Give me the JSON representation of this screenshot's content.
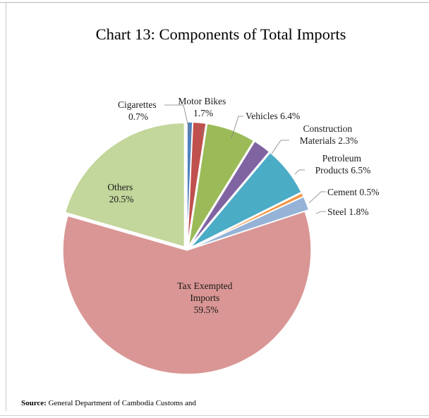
{
  "chart_data": {
    "type": "pie",
    "title": "Chart 13: Components of Total Imports",
    "slices": [
      {
        "name": "Cigarettes",
        "value": 0.7,
        "value_label": "0.7%",
        "color": "#4f81bd",
        "explode": true
      },
      {
        "name": "Motor Bikes",
        "value": 1.7,
        "value_label": "1.7%",
        "color": "#c0504d",
        "explode": true
      },
      {
        "name": "Vehicles",
        "value": 6.4,
        "value_label": "6.4%",
        "color": "#9bbb59",
        "explode": true
      },
      {
        "name": "Construction Materials",
        "value": 2.3,
        "value_label": "2.3%",
        "color": "#8064a2",
        "explode": true
      },
      {
        "name": "Petroleum Products",
        "value": 6.5,
        "value_label": "6.5%",
        "color": "#4bacc6",
        "explode": true
      },
      {
        "name": "Cement",
        "value": 0.5,
        "value_label": "0.5%",
        "color": "#f79646",
        "explode": true
      },
      {
        "name": "Steel",
        "value": 1.8,
        "value_label": "1.8%",
        "color": "#95b3d7",
        "explode": true
      },
      {
        "name": "Tax Exempted Imports",
        "value": 59.5,
        "value_label": "59.5%",
        "color": "#d99694",
        "explode": false
      },
      {
        "name": "Others",
        "value": 20.5,
        "value_label": "20.5%",
        "color": "#c3d69b",
        "explode": true
      }
    ]
  },
  "labels": {
    "cigarettes": {
      "line1": "Cigarettes",
      "line2": "0.7%"
    },
    "motor_bikes": {
      "line1": "Motor Bikes",
      "line2": "1.7%"
    },
    "vehicles": {
      "line1": "Vehicles 6.4%"
    },
    "construction": {
      "line1": "Construction",
      "line2": "Materials 2.3%"
    },
    "petroleum": {
      "line1": "Petroleum",
      "line2": "Products 6.5%"
    },
    "cement": {
      "line1": "Cement 0.5%"
    },
    "steel": {
      "line1": "Steel 1.8%"
    },
    "tax_exempted": {
      "line1": "Tax Exempted",
      "line2": "Imports",
      "line3": "59.5%"
    },
    "others": {
      "line1": "Others",
      "line2": "20.5%"
    }
  },
  "source": {
    "prefix": "Source:",
    "text": " General Department of Cambodia Customs and"
  }
}
